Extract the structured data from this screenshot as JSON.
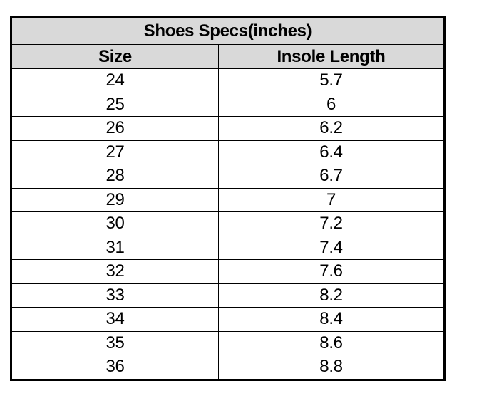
{
  "table": {
    "title": "Shoes Specs(inches)",
    "columns": [
      "Size",
      "Insole Length"
    ],
    "rows": [
      [
        "24",
        "5.7"
      ],
      [
        "25",
        "6"
      ],
      [
        "26",
        "6.2"
      ],
      [
        "27",
        "6.4"
      ],
      [
        "28",
        "6.7"
      ],
      [
        "29",
        "7"
      ],
      [
        "30",
        "7.2"
      ],
      [
        "31",
        "7.4"
      ],
      [
        "32",
        "7.6"
      ],
      [
        "33",
        "8.2"
      ],
      [
        "34",
        "8.4"
      ],
      [
        "35",
        "8.6"
      ],
      [
        "36",
        "8.8"
      ]
    ],
    "colors": {
      "header_bg": "#d9d9d9",
      "row_bg": "#ffffff",
      "border": "#000000",
      "text": "#000000"
    }
  }
}
